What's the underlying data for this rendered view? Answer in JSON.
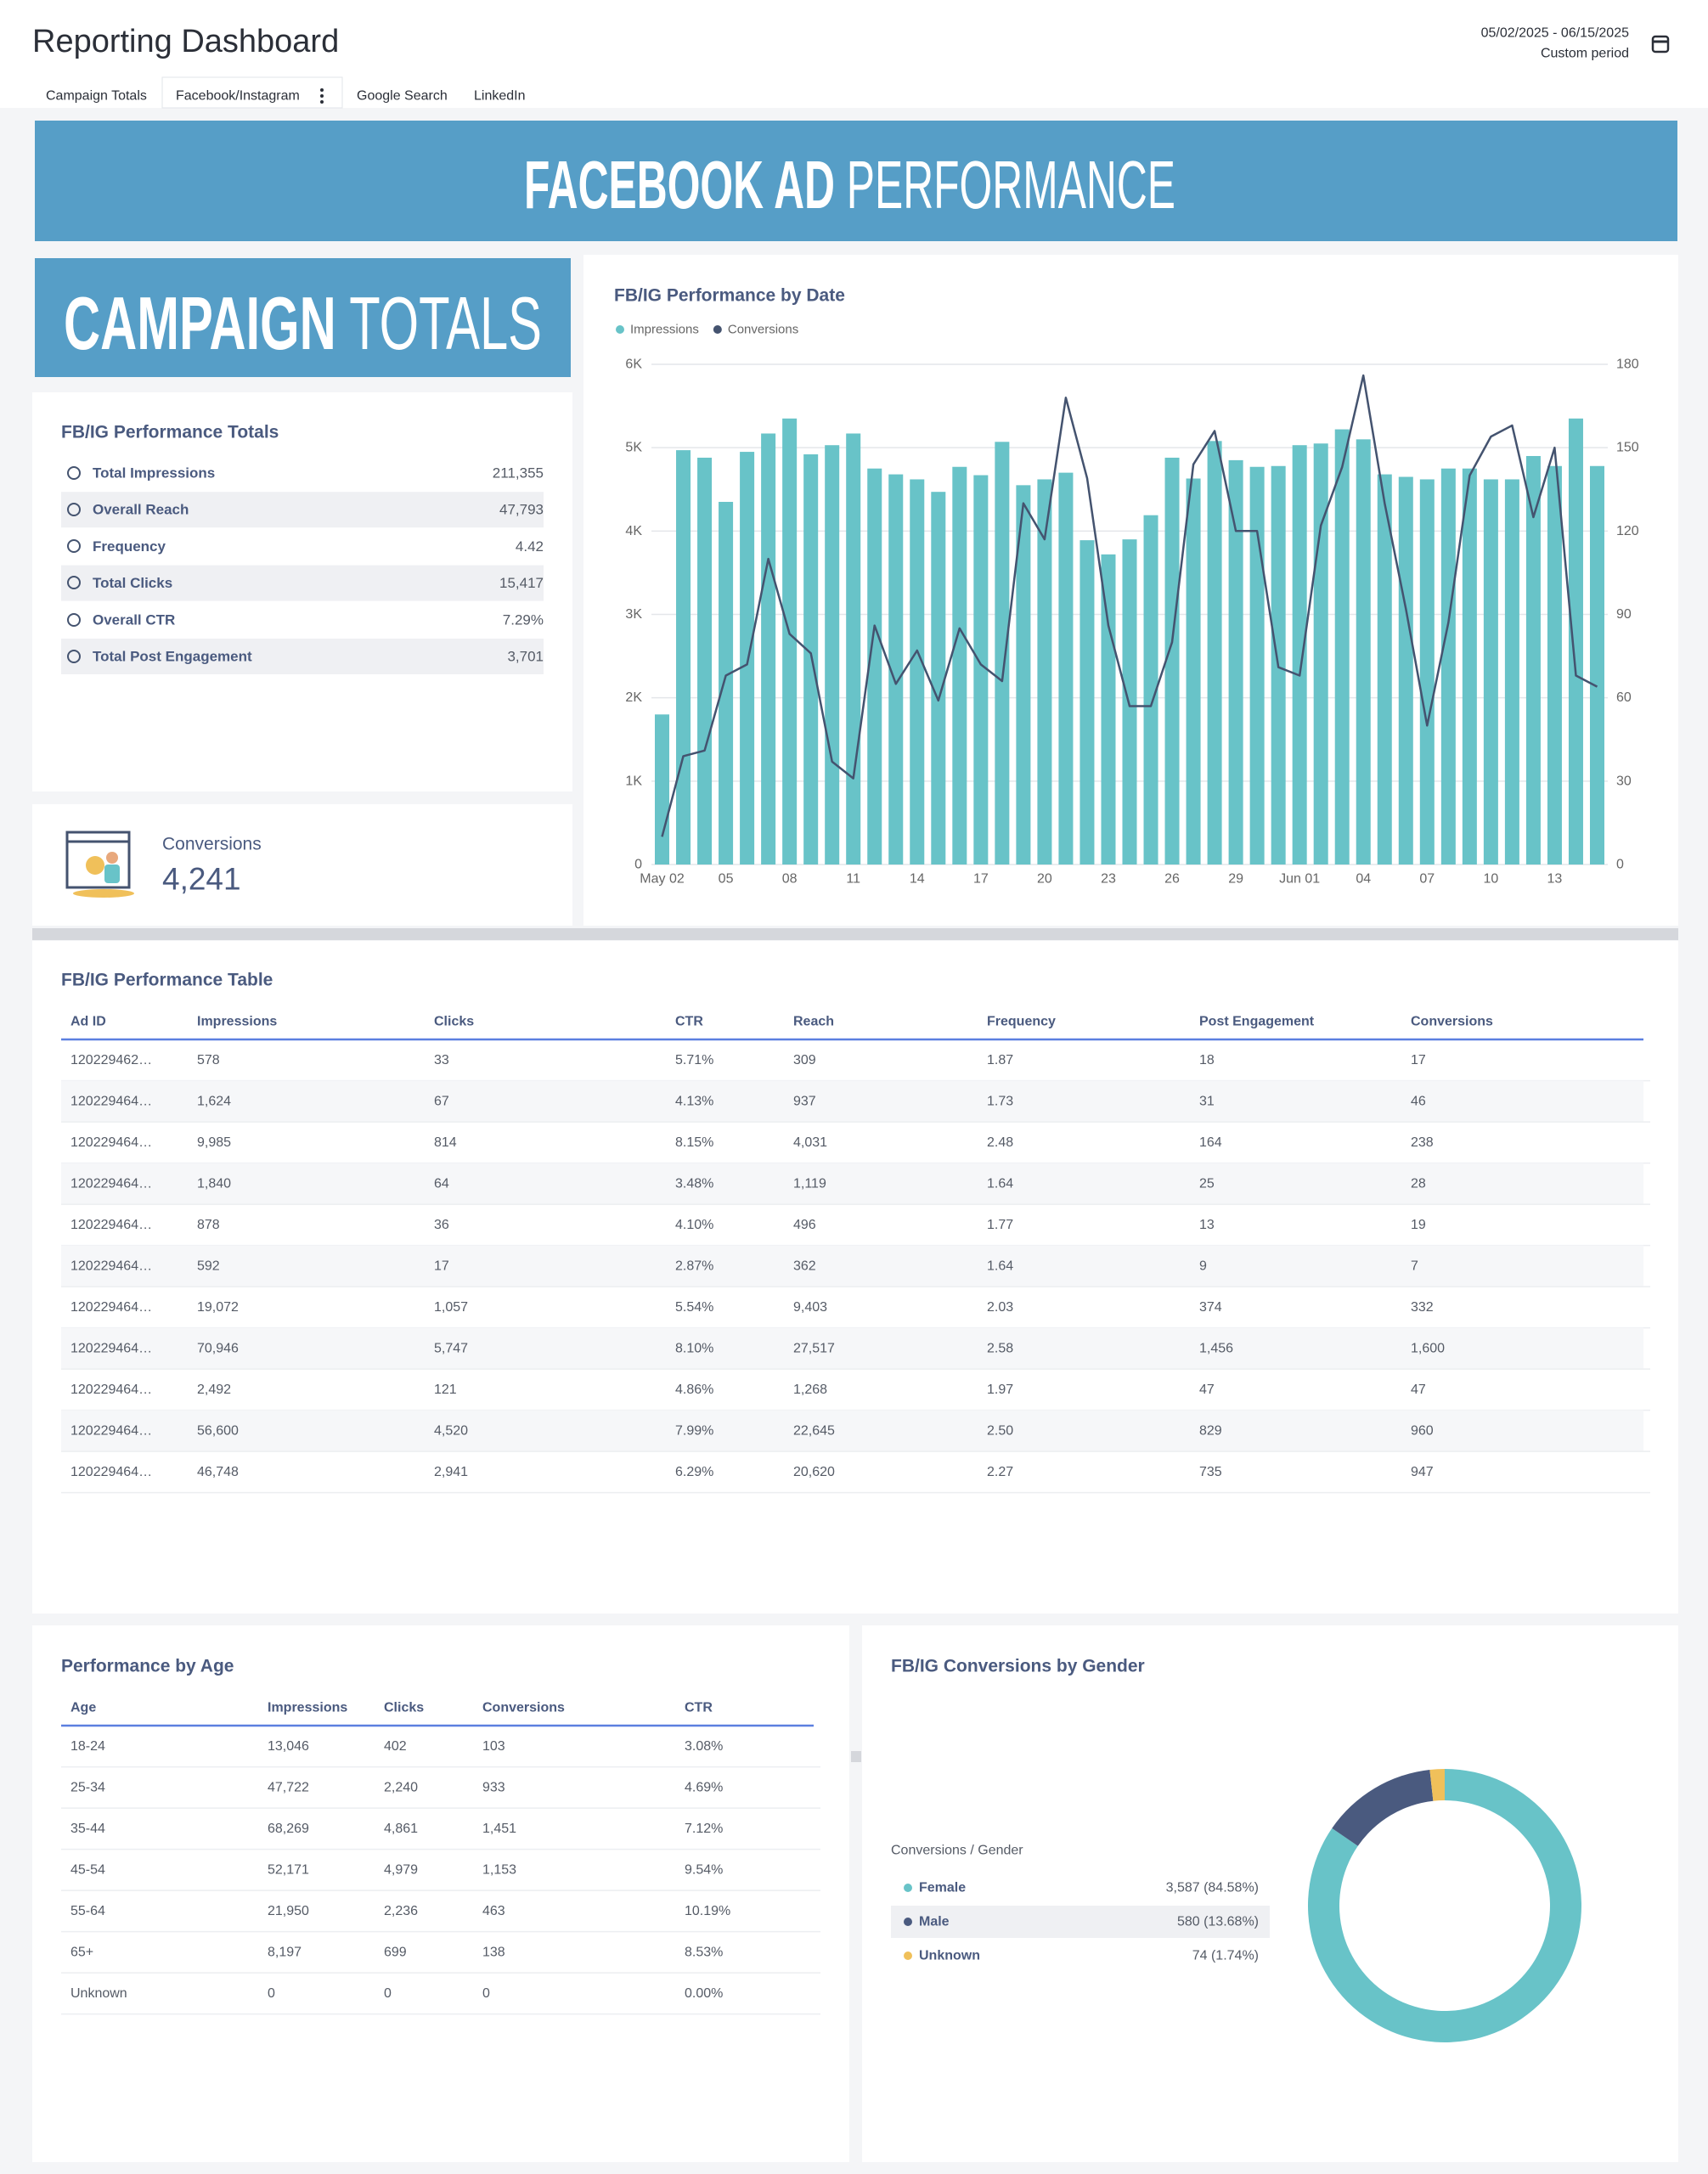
{
  "header": {
    "title": "Reporting Dashboard",
    "date_range": "05/02/2025 - 06/15/2025",
    "period": "Custom period"
  },
  "tabs": [
    "Campaign Totals",
    "Facebook/Instagram",
    "Google Search",
    "LinkedIn"
  ],
  "banner": {
    "bold": "FACEBOOK AD",
    "light": "PERFORMANCE"
  },
  "section_banner": {
    "bold": "CAMPAIGN",
    "light": "TOTALS"
  },
  "totals": {
    "title": "FB/IG Performance Totals",
    "rows": [
      [
        "Total Impressions",
        "211,355"
      ],
      [
        "Overall Reach",
        "47,793"
      ],
      [
        "Frequency",
        "4.42"
      ],
      [
        "Total Clicks",
        "15,417"
      ],
      [
        "Overall CTR",
        "7.29%"
      ],
      [
        "Total Post Engagement",
        "3,701"
      ]
    ]
  },
  "conversions": {
    "label": "Conversions",
    "value": "4,241"
  },
  "chart_data": [
    {
      "type": "combo",
      "title": "FB/IG Performance by Date",
      "categories": [
        "May 02",
        null,
        null,
        "05",
        null,
        null,
        "08",
        null,
        null,
        "11",
        null,
        null,
        "14",
        null,
        null,
        "17",
        null,
        null,
        "20",
        null,
        null,
        "23",
        null,
        null,
        "26",
        null,
        null,
        "29",
        null,
        null,
        "Jun 01",
        null,
        null,
        "04",
        null,
        null,
        "07",
        null,
        null,
        "10",
        null,
        null,
        "13",
        null,
        null
      ],
      "series": [
        {
          "name": "Impressions",
          "type": "bar",
          "color": "#68c3c8",
          "values": [
            1800,
            4970,
            4880,
            4350,
            4950,
            5170,
            5350,
            4920,
            5030,
            5170,
            4750,
            4680,
            4620,
            4470,
            4770,
            4670,
            5070,
            4550,
            4620,
            4700,
            3890,
            3720,
            3900,
            4190,
            4880,
            4630,
            5080,
            4850,
            4770,
            4780,
            5030,
            5050,
            5220,
            5100,
            4680,
            4650,
            4620,
            4750,
            4750,
            4620,
            4620,
            4900,
            4780,
            5350,
            4780
          ]
        },
        {
          "name": "Conversions",
          "type": "line",
          "axis": "y2",
          "color": "#44536f",
          "values": [
            10,
            39,
            41,
            68,
            72,
            110,
            83,
            76,
            37,
            31,
            86,
            65,
            77,
            59,
            85,
            72,
            66,
            130,
            117,
            168,
            139,
            86,
            57,
            57,
            80,
            144,
            156,
            120,
            120,
            71,
            68,
            122,
            143,
            176,
            130,
            92,
            50,
            87,
            140,
            154,
            158,
            125,
            150,
            68,
            64
          ]
        }
      ],
      "ylim": [
        0,
        6000
      ],
      "yticks": [
        0,
        {
          "value": 1000,
          "label": "1K"
        },
        {
          "value": 2000,
          "label": "2K"
        },
        {
          "value": 3000,
          "label": "3K"
        },
        {
          "value": 4000,
          "label": "4K"
        },
        {
          "value": 5000,
          "label": "5K"
        },
        {
          "value": 6000,
          "label": "6K"
        }
      ],
      "y2lim": [
        0,
        180
      ],
      "y2ticks": [
        0,
        30,
        60,
        90,
        120,
        150,
        180
      ],
      "grid": true,
      "legend": "top-left"
    },
    {
      "type": "donut",
      "title": "FB/IG Conversions by Gender",
      "legend_title": "Conversions / Gender",
      "categories": [
        "Female",
        "Male",
        "Unknown"
      ],
      "values": [
        3587,
        580,
        74
      ],
      "value_labels": [
        "3,587 (84.58%)",
        "580 (13.68%)",
        "74 (1.74%)"
      ],
      "colors": [
        "#68c3c8",
        "#4a5a7f",
        "#f0c05a"
      ],
      "legend": "left"
    }
  ],
  "table": {
    "title": "FB/IG Performance Table",
    "columns": [
      "Ad ID",
      "Impressions",
      "Clicks",
      "CTR",
      "Reach",
      "Frequency",
      "Post Engagement",
      "Conversions"
    ],
    "rows": [
      [
        "120229462…",
        "578",
        "33",
        "5.71%",
        "309",
        "1.87",
        "18",
        "17"
      ],
      [
        "120229464…",
        "1,624",
        "67",
        "4.13%",
        "937",
        "1.73",
        "31",
        "46"
      ],
      [
        "120229464…",
        "9,985",
        "814",
        "8.15%",
        "4,031",
        "2.48",
        "164",
        "238"
      ],
      [
        "120229464…",
        "1,840",
        "64",
        "3.48%",
        "1,119",
        "1.64",
        "25",
        "28"
      ],
      [
        "120229464…",
        "878",
        "36",
        "4.10%",
        "496",
        "1.77",
        "13",
        "19"
      ],
      [
        "120229464…",
        "592",
        "17",
        "2.87%",
        "362",
        "1.64",
        "9",
        "7"
      ],
      [
        "120229464…",
        "19,072",
        "1,057",
        "5.54%",
        "9,403",
        "2.03",
        "374",
        "332"
      ],
      [
        "120229464…",
        "70,946",
        "5,747",
        "8.10%",
        "27,517",
        "2.58",
        "1,456",
        "1,600"
      ],
      [
        "120229464…",
        "2,492",
        "121",
        "4.86%",
        "1,268",
        "1.97",
        "47",
        "47"
      ],
      [
        "120229464…",
        "56,600",
        "4,520",
        "7.99%",
        "22,645",
        "2.50",
        "829",
        "960"
      ],
      [
        "120229464…",
        "46,748",
        "2,941",
        "6.29%",
        "20,620",
        "2.27",
        "735",
        "947"
      ]
    ]
  },
  "age_table": {
    "title": "Performance by Age",
    "columns": [
      "Age",
      "Impressions",
      "Clicks",
      "Conversions",
      "CTR"
    ],
    "rows": [
      [
        "18-24",
        "13,046",
        "402",
        "103",
        "3.08%"
      ],
      [
        "25-34",
        "47,722",
        "2,240",
        "933",
        "4.69%"
      ],
      [
        "35-44",
        "68,269",
        "4,861",
        "1,451",
        "7.12%"
      ],
      [
        "45-54",
        "52,171",
        "4,979",
        "1,153",
        "9.54%"
      ],
      [
        "55-64",
        "21,950",
        "2,236",
        "463",
        "10.19%"
      ],
      [
        "65+",
        "8,197",
        "699",
        "138",
        "8.53%"
      ],
      [
        "Unknown",
        "0",
        "0",
        "0",
        "0.00%"
      ]
    ]
  }
}
